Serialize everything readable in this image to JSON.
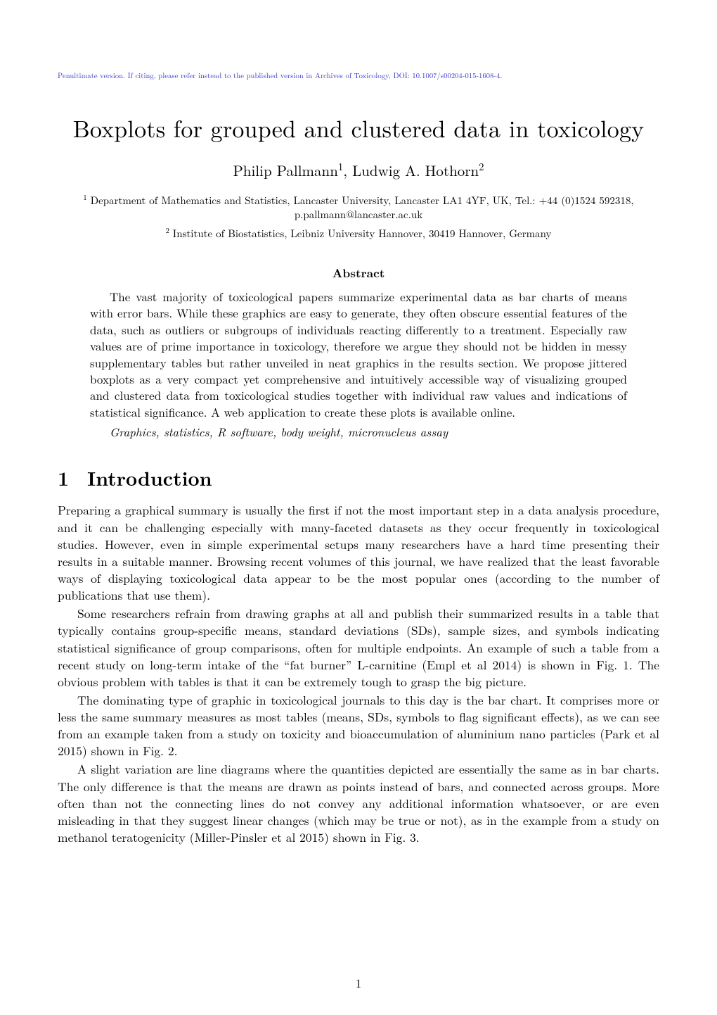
{
  "colors": {
    "text": "#000000",
    "link_note": "#3333cc",
    "background": "#ffffff"
  },
  "typography": {
    "body_fontsize_pt": 11,
    "title_fontsize_pt": 20,
    "section_fontsize_pt": 17,
    "abstract_heading_fontsize_pt": 11,
    "header_note_fontsize_pt": 7,
    "font_family": "Computer Modern / Latin Modern Roman"
  },
  "header_note": "Penultimate version. If citing, please refer instead to the published version in Archives of Toxicology, DOI: 10.1007/s00204-015-1608-4.",
  "title": "Boxplots for grouped and clustered data in toxicology",
  "authors_line": {
    "author1_name": "Philip Pallmann",
    "author1_sup": "1",
    "separator": ", ",
    "author2_name": "Ludwig A. Hothorn",
    "author2_sup": "2"
  },
  "affiliations": {
    "aff1_sup": "1",
    "aff1_text": " Department of Mathematics and Statistics, Lancaster University, Lancaster LA1 4YF, UK, Tel.: +44 (0)1524 592318, p.pallmann@lancaster.ac.uk",
    "aff2_sup": "2",
    "aff2_text": " Institute of Biostatistics, Leibniz University Hannover, 30419 Hannover, Germany"
  },
  "abstract": {
    "heading": "Abstract",
    "body": "The vast majority of toxicological papers summarize experimental data as bar charts of means with error bars. While these graphics are easy to generate, they often obscure essential features of the data, such as outliers or subgroups of individuals reacting differently to a treatment. Especially raw values are of prime importance in toxicology, therefore we argue they should not be hidden in messy supplementary tables but rather unveiled in neat graphics in the results section. We propose jittered boxplots as a very compact yet comprehensive and intuitively accessible way of visualizing grouped and clustered data from toxicological studies together with individual raw values and indications of statistical significance. A web application to create these plots is available online.",
    "keywords": "Graphics, statistics, R software, body weight, micronucleus assay"
  },
  "section1": {
    "number": "1",
    "title": "Introduction",
    "paragraphs": [
      "Preparing a graphical summary is usually the first if not the most important step in a data analysis procedure, and it can be challenging especially with many-faceted datasets as they occur frequently in toxicological studies. However, even in simple experimental setups many researchers have a hard time presenting their results in a suitable manner. Browsing recent volumes of this journal, we have realized that the least favorable ways of displaying toxicological data appear to be the most popular ones (according to the number of publications that use them).",
      "Some researchers refrain from drawing graphs at all and publish their summarized results in a table that typically contains group-specific means, standard deviations (SDs), sample sizes, and symbols indicating statistical significance of group comparisons, often for multiple endpoints. An example of such a table from a recent study on long-term intake of the “fat burner” L-carnitine (Empl et al 2014) is shown in Fig. 1. The obvious problem with tables is that it can be extremely tough to grasp the big picture.",
      "The dominating type of graphic in toxicological journals to this day is the bar chart. It comprises more or less the same summary measures as most tables (means, SDs, symbols to flag significant effects), as we can see from an example taken from a study on toxicity and bioaccumulation of aluminium nano particles (Park et al 2015) shown in Fig. 2.",
      "A slight variation are line diagrams where the quantities depicted are essentially the same as in bar charts. The only difference is that the means are drawn as points instead of bars, and connected across groups. More often than not the connecting lines do not convey any additional information whatsoever, or are even misleading in that they suggest linear changes (which may be true or not), as in the example from a study on methanol teratogenicity (Miller-Pinsler et al 2015) shown in Fig. 3."
    ]
  },
  "page_number": "1"
}
